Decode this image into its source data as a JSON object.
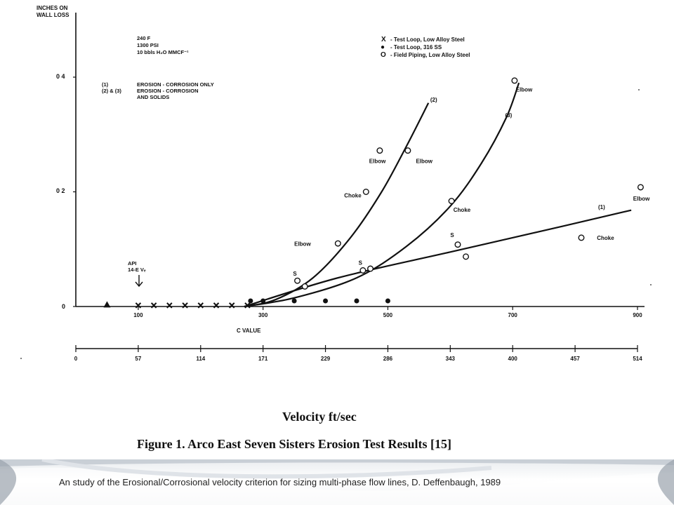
{
  "chart_data": {
    "type": "scatter",
    "ylabel": "INCHES ON WALL LOSS",
    "y_ticks": [
      "0",
      "0 2",
      "0 4"
    ],
    "ylim": [
      0,
      0.42
    ],
    "xlim": [
      0,
      900
    ],
    "c_axis": {
      "label": "C VALUE",
      "ticks": [
        "100",
        "300",
        "500",
        "700",
        "900"
      ]
    },
    "velocity_axis": {
      "label": "Velocity ft/sec",
      "ticks": [
        "0",
        "57",
        "114",
        "171",
        "229",
        "286",
        "343",
        "400",
        "457",
        "514"
      ]
    },
    "conditions": [
      "240 F",
      "1300 PSI",
      "10 bbls H₂O MMCF⁻¹"
    ],
    "curve_key": [
      {
        "id": "(1)",
        "text": "EROSION - CORROSION ONLY"
      },
      {
        "id": "(2) & (3)",
        "text": "EROSION - CORROSION AND SOLIDS"
      }
    ],
    "legend": [
      {
        "symbol": "X",
        "text": "- Test Loop, Low Alloy Steel"
      },
      {
        "symbol": "●",
        "text": "- Test Loop, 316 SS"
      },
      {
        "symbol": "O",
        "text": "- Field Piping, Low Alloy Steel"
      }
    ],
    "api_marker": {
      "text1": "API",
      "text2": "14-E Vₑ",
      "x": 100
    },
    "series": [
      {
        "marker": "x",
        "x": [
          100,
          125,
          150,
          175,
          200,
          225,
          250,
          275
        ],
        "y": [
          0.002,
          0.002,
          0.002,
          0.002,
          0.002,
          0.002,
          0.002,
          0.002
        ]
      },
      {
        "marker": "dot",
        "x": [
          280,
          300,
          350,
          400,
          450,
          500
        ],
        "y": [
          0,
          0,
          0,
          0,
          0,
          0
        ]
      },
      {
        "marker": "triangle",
        "x": [
          50
        ],
        "y": [
          0.002
        ]
      },
      {
        "marker": "circle",
        "x": [
          355,
          367,
          420,
          460,
          465,
          472,
          487,
          532,
          602,
          612,
          625,
          703,
          810,
          905
        ],
        "y": [
          0.045,
          0.035,
          0.11,
          0.063,
          0.2,
          0.066,
          0.272,
          0.272,
          0.184,
          0.108,
          0.087,
          0.394,
          0.12,
          0.208
        ]
      }
    ],
    "curves": [
      {
        "name": "(1)",
        "x": [
          270,
          420,
          600,
          780,
          890
        ],
        "y": [
          0,
          0.05,
          0.095,
          0.14,
          0.168
        ]
      },
      {
        "name": "(2)",
        "x": [
          270,
          320,
          380,
          440,
          490,
          530,
          565
        ],
        "y": [
          0,
          0.012,
          0.05,
          0.12,
          0.2,
          0.28,
          0.355
        ]
      },
      {
        "name": "(3)",
        "x": [
          270,
          350,
          450,
          530,
          600,
          650,
          690,
          710
        ],
        "y": [
          0,
          0.015,
          0.05,
          0.105,
          0.175,
          0.25,
          0.33,
          0.39
        ]
      }
    ],
    "annotations": [
      {
        "text": "Elbow",
        "x": 470,
        "y": 0.25
      },
      {
        "text": "Elbow",
        "x": 545,
        "y": 0.25
      },
      {
        "text": "Choke",
        "x": 430,
        "y": 0.19
      },
      {
        "text": "Elbow",
        "x": 350,
        "y": 0.106
      },
      {
        "text": "S",
        "x": 348,
        "y": 0.054
      },
      {
        "text": "S",
        "x": 453,
        "y": 0.073
      },
      {
        "text": "Choke",
        "x": 605,
        "y": 0.165
      },
      {
        "text": "S",
        "x": 600,
        "y": 0.121
      },
      {
        "text": "Elbow",
        "x": 705,
        "y": 0.375
      },
      {
        "text": "(3)",
        "x": 688,
        "y": 0.33
      },
      {
        "text": "(2)",
        "x": 568,
        "y": 0.357
      },
      {
        "text": "(1)",
        "x": 837,
        "y": 0.17
      },
      {
        "text": "Choke",
        "x": 835,
        "y": 0.116
      },
      {
        "text": "Elbow",
        "x": 893,
        "y": 0.185
      }
    ],
    "title": "Figure 1.  Arco East Seven Sisters Erosion Test Results [15]"
  },
  "footer": {
    "caption": "An study of the Erosional/Corrosional  velocity criterion  for sizing multi-phase flow lines, D. Deffenbaugh, 1989"
  }
}
